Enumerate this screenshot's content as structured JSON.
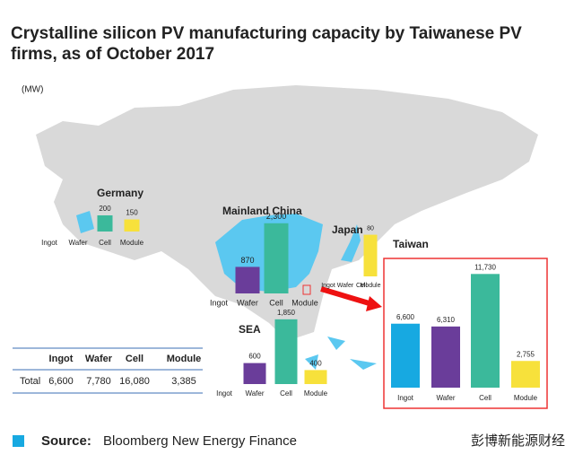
{
  "header": {
    "title_line1": "Crystalline silicon PV manufacturing capacity by Taiwanese PV",
    "title_line2": "firms, as of October 2017",
    "unit": "(MW)"
  },
  "chart_data": [
    {
      "type": "bar",
      "title": "Germany",
      "categories": [
        "Ingot",
        "Wafer",
        "Cell",
        "Module"
      ],
      "values": [
        null,
        null,
        200,
        150
      ],
      "colors": [
        "#17a9e1",
        "#6a3d9a",
        "#3bb99b",
        "#f7e13b"
      ]
    },
    {
      "type": "bar",
      "title": "Mainland China",
      "categories": [
        "Ingot",
        "Wafer",
        "Cell",
        "Module"
      ],
      "values": [
        null,
        870,
        2300,
        null
      ],
      "value_labels": [
        null,
        "870",
        "2,300",
        null
      ],
      "colors": [
        "#17a9e1",
        "#6a3d9a",
        "#3bb99b",
        "#f7e13b"
      ]
    },
    {
      "type": "bar",
      "title": "Japan",
      "categories": [
        "Ingot",
        "Wafer",
        "Cell",
        "Module"
      ],
      "values": [
        null,
        null,
        null,
        80
      ],
      "colors": [
        "#17a9e1",
        "#6a3d9a",
        "#3bb99b",
        "#f7e13b"
      ]
    },
    {
      "type": "bar",
      "title": "SEA",
      "categories": [
        "Ingot",
        "Wafer",
        "Cell",
        "Module"
      ],
      "values": [
        null,
        600,
        1850,
        400
      ],
      "value_labels": [
        null,
        "600",
        "1,850",
        "400"
      ],
      "colors": [
        "#17a9e1",
        "#6a3d9a",
        "#3bb99b",
        "#f7e13b"
      ]
    },
    {
      "type": "bar",
      "title": "Taiwan",
      "categories": [
        "Ingot",
        "Wafer",
        "Cell",
        "Module"
      ],
      "values": [
        6600,
        6310,
        11730,
        2755
      ],
      "value_labels": [
        "6,600",
        "6,310",
        "11,730",
        "2,755"
      ],
      "colors": [
        "#17a9e1",
        "#6a3d9a",
        "#3bb99b",
        "#f7e13b"
      ]
    }
  ],
  "table": {
    "header": [
      "Ingot",
      "Wafer",
      "Cell",
      "Module"
    ],
    "rows": [
      [
        "Total",
        "6,600",
        "7,780",
        "16,080",
        "3,385"
      ]
    ]
  },
  "footer": {
    "source_label": "Source:",
    "source": "Bloomberg New Energy Finance",
    "watermark": "彭博新能源财经"
  }
}
